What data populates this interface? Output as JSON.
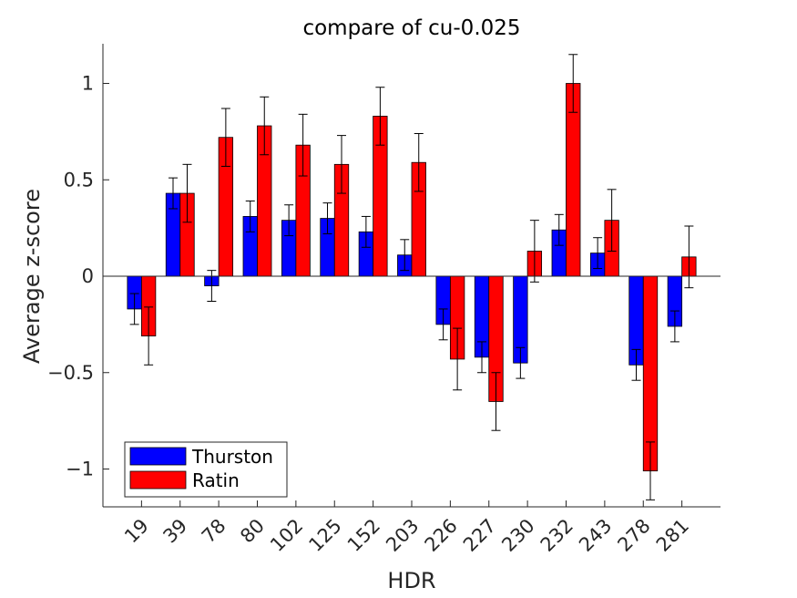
{
  "chart_data": {
    "type": "bar",
    "title": "compare of cu-0.025",
    "xlabel": "HDR",
    "ylabel": "Average z-score",
    "categories": [
      "19",
      "39",
      "78",
      "80",
      "102",
      "125",
      "152",
      "203",
      "226",
      "227",
      "230",
      "232",
      "243",
      "278",
      "281"
    ],
    "series": [
      {
        "name": "Thurston",
        "color": "#0000ff",
        "values": [
          -0.17,
          0.43,
          -0.05,
          0.31,
          0.29,
          0.3,
          0.23,
          0.11,
          -0.25,
          -0.42,
          -0.45,
          0.24,
          0.12,
          -0.46,
          -0.26
        ],
        "errors": [
          0.08,
          0.08,
          0.08,
          0.08,
          0.08,
          0.08,
          0.08,
          0.08,
          0.08,
          0.08,
          0.08,
          0.08,
          0.08,
          0.08,
          0.08
        ]
      },
      {
        "name": "Ratin",
        "color": "#ff0000",
        "values": [
          -0.31,
          0.43,
          0.72,
          0.78,
          0.68,
          0.58,
          0.83,
          0.59,
          -0.43,
          -0.65,
          0.13,
          1.0,
          0.29,
          -1.01,
          0.1
        ],
        "errors": [
          0.15,
          0.15,
          0.15,
          0.15,
          0.16,
          0.15,
          0.15,
          0.15,
          0.16,
          0.15,
          0.16,
          0.15,
          0.16,
          0.15,
          0.16
        ]
      }
    ],
    "ylim": [
      -1.2,
      1.2
    ],
    "yticks": [
      -1,
      -0.5,
      0,
      0.5,
      1
    ],
    "ytick_labels": [
      "−1",
      "−0.5",
      "0",
      "0.5",
      "1"
    ],
    "grid": false,
    "legend_position": "bottom-left"
  }
}
